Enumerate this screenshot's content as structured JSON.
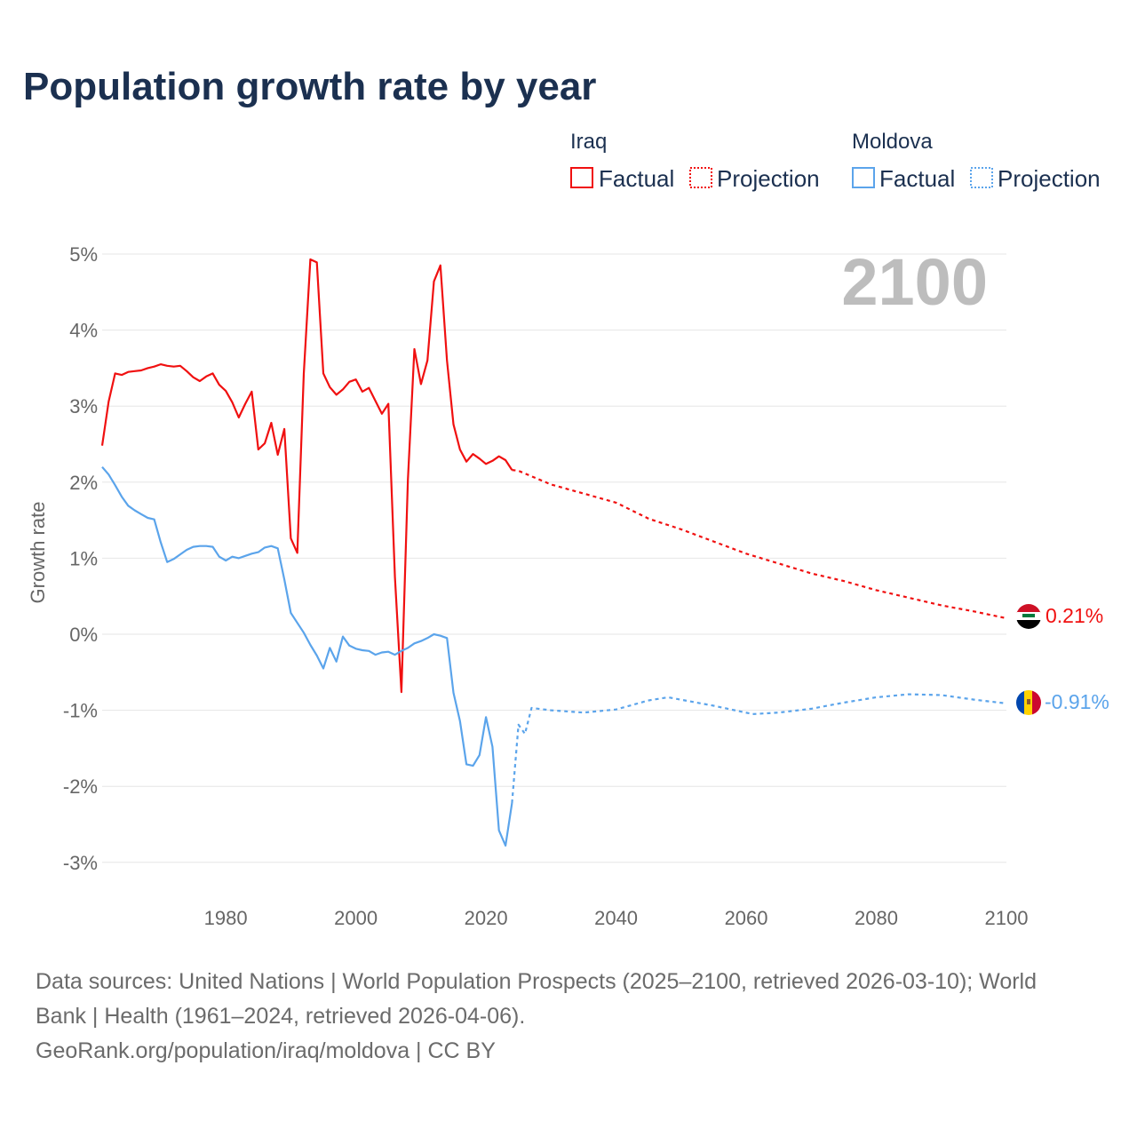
{
  "title": "Population growth rate by year",
  "legend": {
    "groups": [
      {
        "name": "Iraq",
        "factual": "Factual",
        "projection": "Projection"
      },
      {
        "name": "Moldova",
        "factual": "Factual",
        "projection": "Projection"
      }
    ]
  },
  "year_label": "2100",
  "end_labels": {
    "iraq": "0.21%",
    "moldova": "-0.91%"
  },
  "footer": {
    "line1": "Data sources: United Nations | World Population Prospects (2025–2100, retrieved 2026-03-10); World",
    "line2": "Bank | Health (1961–2024, retrieved 2026-04-06).",
    "line3": "GeoRank.org/population/iraq/moldova | CC BY"
  },
  "colors": {
    "iraq": "#f01010",
    "moldova": "#5ba4eb"
  },
  "chart_data": {
    "type": "line",
    "title": "Population growth rate by year",
    "xlabel": "",
    "ylabel": "Growth rate",
    "xlim": [
      1961,
      2100
    ],
    "ylim": [
      -3.5,
      5.3
    ],
    "x_ticks": [
      1980,
      2000,
      2020,
      2040,
      2060,
      2080,
      2100
    ],
    "x_tick_labels": [
      "1980",
      "2000",
      "2020",
      "2040",
      "2060",
      "2080",
      "2100"
    ],
    "y_ticks": [
      5,
      4,
      3,
      2,
      1,
      0,
      -1,
      -2,
      -3
    ],
    "y_tick_labels": [
      "5%",
      "4%",
      "3%",
      "2%",
      "1%",
      "0%",
      "-1%",
      "-2%",
      "-3%"
    ],
    "grid": true,
    "legend_position": "top-right",
    "series": [
      {
        "name": "Iraq Factual",
        "style": "solid",
        "color": "#f01010",
        "x": [
          1961,
          1962,
          1963,
          1964,
          1965,
          1966,
          1967,
          1968,
          1969,
          1970,
          1971,
          1972,
          1973,
          1974,
          1975,
          1976,
          1977,
          1978,
          1979,
          1980,
          1981,
          1982,
          1983,
          1984,
          1985,
          1986,
          1987,
          1988,
          1989,
          1990,
          1991,
          1992,
          1993,
          1994,
          1995,
          1996,
          1997,
          1998,
          1999,
          2000,
          2001,
          2002,
          2003,
          2004,
          2005,
          2006,
          2007,
          2008,
          2009,
          2010,
          2011,
          2012,
          2013,
          2014,
          2015,
          2016,
          2017,
          2018,
          2019,
          2020,
          2021,
          2022,
          2023,
          2024
        ],
        "y": [
          2.48,
          3.06,
          3.43,
          3.41,
          3.45,
          3.46,
          3.47,
          3.5,
          3.52,
          3.55,
          3.53,
          3.52,
          3.53,
          3.46,
          3.38,
          3.33,
          3.39,
          3.43,
          3.28,
          3.2,
          3.05,
          2.85,
          3.03,
          3.19,
          2.43,
          2.51,
          2.78,
          2.36,
          2.7,
          1.26,
          1.07,
          3.43,
          4.93,
          4.89,
          3.43,
          3.25,
          3.15,
          3.22,
          3.32,
          3.35,
          3.19,
          3.24,
          3.07,
          2.9,
          3.03,
          0.75,
          -0.76,
          2.03,
          3.75,
          3.29,
          3.6,
          4.64,
          4.85,
          3.6,
          2.76,
          2.43,
          2.27,
          2.37,
          2.31,
          2.24,
          2.28,
          2.34,
          2.29,
          2.16
        ]
      },
      {
        "name": "Iraq Projection",
        "style": "dotted",
        "color": "#f01010",
        "x": [
          2024,
          2025,
          2030,
          2035,
          2040,
          2045,
          2050,
          2055,
          2060,
          2065,
          2070,
          2075,
          2080,
          2085,
          2090,
          2095,
          2100
        ],
        "y": [
          2.16,
          2.15,
          1.97,
          1.85,
          1.73,
          1.52,
          1.38,
          1.22,
          1.06,
          0.93,
          0.8,
          0.7,
          0.58,
          0.48,
          0.38,
          0.3,
          0.21
        ]
      },
      {
        "name": "Moldova Factual",
        "style": "solid",
        "color": "#5ba4eb",
        "x": [
          1961,
          1962,
          1963,
          1964,
          1965,
          1966,
          1967,
          1968,
          1969,
          1970,
          1971,
          1972,
          1973,
          1974,
          1975,
          1976,
          1977,
          1978,
          1979,
          1980,
          1981,
          1982,
          1983,
          1984,
          1985,
          1986,
          1987,
          1988,
          1989,
          1990,
          1991,
          1992,
          1993,
          1994,
          1995,
          1996,
          1997,
          1998,
          1999,
          2000,
          2001,
          2002,
          2003,
          2004,
          2005,
          2006,
          2007,
          2008,
          2009,
          2010,
          2011,
          2012,
          2013,
          2014,
          2015,
          2016,
          2017,
          2018,
          2019,
          2020,
          2021,
          2022,
          2023,
          2024
        ],
        "y": [
          2.2,
          2.1,
          1.96,
          1.81,
          1.69,
          1.63,
          1.58,
          1.53,
          1.51,
          1.21,
          0.95,
          0.99,
          1.05,
          1.11,
          1.15,
          1.16,
          1.16,
          1.15,
          1.02,
          0.97,
          1.02,
          1.0,
          1.03,
          1.06,
          1.08,
          1.14,
          1.16,
          1.13,
          0.72,
          0.28,
          0.15,
          0.02,
          -0.14,
          -0.28,
          -0.45,
          -0.18,
          -0.36,
          -0.03,
          -0.15,
          -0.19,
          -0.21,
          -0.22,
          -0.27,
          -0.24,
          -0.23,
          -0.27,
          -0.22,
          -0.18,
          -0.12,
          -0.09,
          -0.05,
          0.0,
          -0.02,
          -0.05,
          -0.77,
          -1.14,
          -1.71,
          -1.73,
          -1.59,
          -1.09,
          -1.48,
          -2.58,
          -2.78,
          -2.22
        ]
      },
      {
        "name": "Moldova Projection",
        "style": "dotted",
        "color": "#5ba4eb",
        "x": [
          2024,
          2025,
          2026,
          2027,
          2030,
          2035,
          2040,
          2045,
          2048,
          2055,
          2061,
          2065,
          2070,
          2075,
          2080,
          2085,
          2090,
          2095,
          2100
        ],
        "y": [
          -2.22,
          -1.19,
          -1.31,
          -0.97,
          -1.0,
          -1.03,
          -0.99,
          -0.87,
          -0.83,
          -0.94,
          -1.05,
          -1.03,
          -0.98,
          -0.9,
          -0.83,
          -0.79,
          -0.8,
          -0.86,
          -0.91
        ]
      }
    ]
  }
}
